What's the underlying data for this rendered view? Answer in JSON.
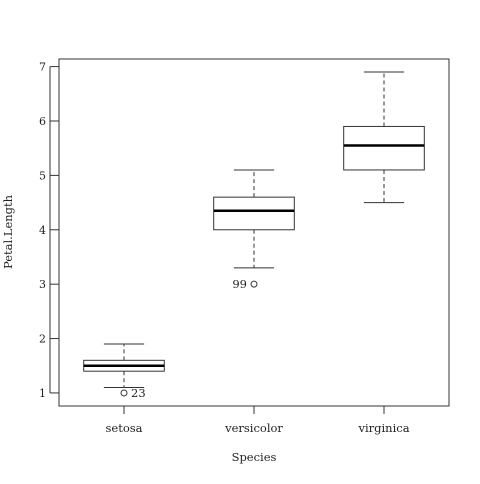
{
  "chart_data": {
    "type": "boxplot",
    "title": "",
    "xlabel": "Species",
    "ylabel": "Petal.Length",
    "ylim": [
      0.76,
      7.14
    ],
    "y_ticks": [
      1,
      2,
      3,
      4,
      5,
      6,
      7
    ],
    "categories": [
      "setosa",
      "versicolor",
      "virginica"
    ],
    "boxes": [
      {
        "category": "setosa",
        "whisker_low": 1.1,
        "q1": 1.4,
        "median": 1.5,
        "q3": 1.6,
        "whisker_high": 1.9,
        "outliers": [
          {
            "value": 1.0,
            "label": "23"
          }
        ]
      },
      {
        "category": "versicolor",
        "whisker_low": 3.3,
        "q1": 4.0,
        "median": 4.35,
        "q3": 4.6,
        "whisker_high": 5.1,
        "outliers": [
          {
            "value": 3.0,
            "label": "99"
          }
        ]
      },
      {
        "category": "virginica",
        "whisker_low": 4.5,
        "q1": 5.1,
        "median": 5.55,
        "q3": 5.9,
        "whisker_high": 6.9,
        "outliers": []
      }
    ],
    "grid": false,
    "legend": "none"
  }
}
